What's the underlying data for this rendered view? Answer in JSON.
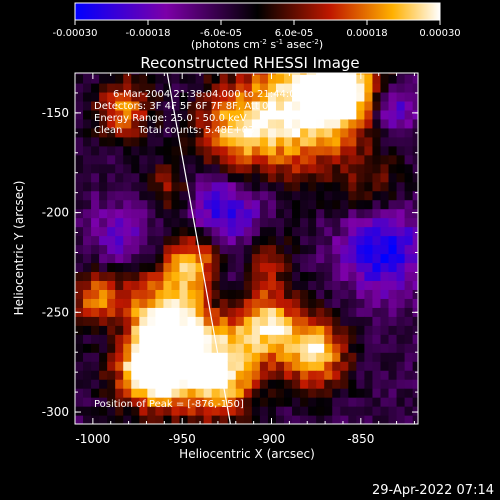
{
  "colorbar": {
    "tick_labels": [
      "-0.00030",
      "-0.00018",
      "-6.0e-05",
      "6.0e-05",
      "0.00018",
      "0.00030"
    ],
    "unit_label": "(photons cm",
    "unit_label_exp1": "-2",
    "unit_label_mid": " s",
    "unit_label_exp2": "-1",
    "unit_label_end": " asec",
    "unit_label_exp3": "-2",
    "unit_label_close": ")",
    "colors": {
      "low": "#0000ff",
      "mid_low": "#7c00a8",
      "mid": "#000000",
      "mid_high": "#c01800",
      "high": "#ffb000",
      "top": "#ffffff"
    }
  },
  "chart_data": {
    "type": "heatmap",
    "title": "Reconstructed RHESSI Image",
    "xlabel": "Heliocentric X (arcsec)",
    "ylabel": "Heliocentric Y (arcsec)",
    "x_ticks": [
      "-1000",
      "-950",
      "-900",
      "-850"
    ],
    "y_ticks": [
      "-150",
      "-200",
      "-250",
      "-300"
    ],
    "xlim": [
      -1010,
      -818
    ],
    "ylim": [
      -306,
      -130
    ],
    "grid": false,
    "limb_line": {
      "x": [
        -959,
        -923
      ],
      "y": [
        -127,
        -306
      ]
    }
  },
  "annotations": {
    "time_range": "6-Mar-2004 21:38:04.000 to 21:44:04.000",
    "detectors": "Detectors: 3F 4F 5F 6F 7F 8F, Att 0",
    "energy": "Energy Range: 25.0 - 50.0 keV",
    "method_counts": "Clean     Total counts: 5.48E+03",
    "peak": "Position of Peak = [-876,-150]"
  },
  "timestamp": "29-Apr-2022 07:14"
}
